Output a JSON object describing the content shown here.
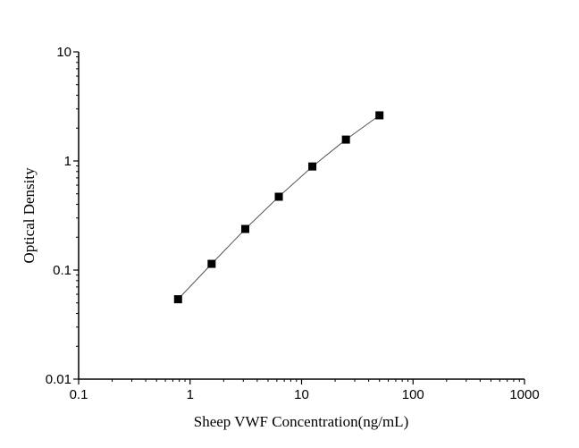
{
  "chart_data": {
    "type": "line",
    "title": "",
    "xlabel": "Sheep VWF Concentration(ng/mL)",
    "ylabel": "Optical Density",
    "x_scale": "log",
    "y_scale": "log",
    "xlim": [
      0.1,
      1000
    ],
    "ylim": [
      0.01,
      10
    ],
    "x_ticks": [
      "0.1",
      "1",
      "10",
      "100",
      "1000"
    ],
    "y_ticks": [
      "0.01",
      "0.1",
      "1",
      "10"
    ],
    "grid": false,
    "marker": "square",
    "series_color": "#000000",
    "line_color": "#555555",
    "series": [
      {
        "x": [
          0.78,
          1.56,
          3.125,
          6.25,
          12.5,
          25,
          50
        ],
        "y": [
          0.054,
          0.114,
          0.238,
          0.47,
          0.89,
          1.57,
          2.62
        ]
      }
    ]
  }
}
